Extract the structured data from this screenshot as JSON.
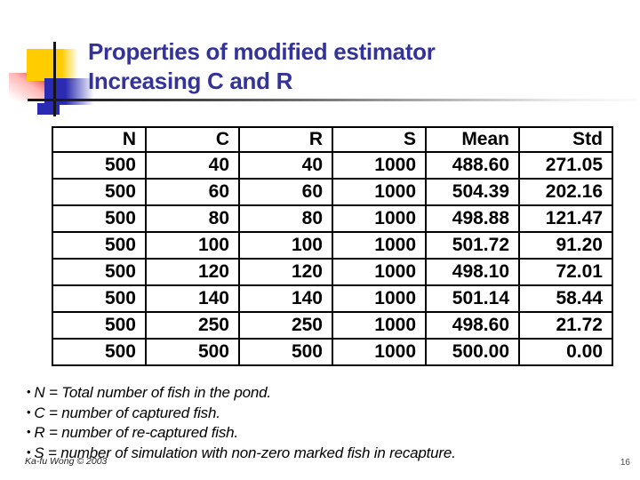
{
  "title": {
    "line1": "Properties of modified estimator",
    "line2": "Increasing C and R"
  },
  "table": {
    "columns": [
      "N",
      "C",
      "R",
      "S",
      "Mean",
      "Std"
    ],
    "rows": [
      [
        "500",
        "40",
        "40",
        "1000",
        "488.60",
        "271.05"
      ],
      [
        "500",
        "60",
        "60",
        "1000",
        "504.39",
        "202.16"
      ],
      [
        "500",
        "80",
        "80",
        "1000",
        "498.88",
        "121.47"
      ],
      [
        "500",
        "100",
        "100",
        "1000",
        "501.72",
        "91.20"
      ],
      [
        "500",
        "120",
        "120",
        "1000",
        "498.10",
        "72.01"
      ],
      [
        "500",
        "140",
        "140",
        "1000",
        "501.14",
        "58.44"
      ],
      [
        "500",
        "250",
        "250",
        "1000",
        "498.60",
        "21.72"
      ],
      [
        "500",
        "500",
        "500",
        "1000",
        "500.00",
        "0.00"
      ]
    ]
  },
  "chart_data": {
    "type": "table",
    "columns": [
      "N",
      "C",
      "R",
      "S",
      "Mean",
      "Std"
    ],
    "rows": [
      [
        500,
        40,
        40,
        1000,
        488.6,
        271.05
      ],
      [
        500,
        60,
        60,
        1000,
        504.39,
        202.16
      ],
      [
        500,
        80,
        80,
        1000,
        498.88,
        121.47
      ],
      [
        500,
        100,
        100,
        1000,
        501.72,
        91.2
      ],
      [
        500,
        120,
        120,
        1000,
        498.1,
        72.01
      ],
      [
        500,
        140,
        140,
        1000,
        501.14,
        58.44
      ],
      [
        500,
        250,
        250,
        1000,
        498.6,
        21.72
      ],
      [
        500,
        500,
        500,
        1000,
        500.0,
        0.0
      ]
    ],
    "title": "Properties of modified estimator, Increasing C and R"
  },
  "notes": {
    "bullet": "•",
    "items": [
      "N = Total number of fish in the pond.",
      "C = number of captured fish.",
      "R = number of re-captured fish.",
      "S = number of simulation with non-zero marked fish in recapture."
    ]
  },
  "footer": {
    "credit": "Ka-fu Wong © 2003",
    "page": "16"
  },
  "colors": {
    "title": "#333399",
    "accent_yellow": "#ffcc00",
    "accent_blue": "#2a2ab2",
    "accent_red": "#e62222",
    "table_border": "#000000"
  }
}
